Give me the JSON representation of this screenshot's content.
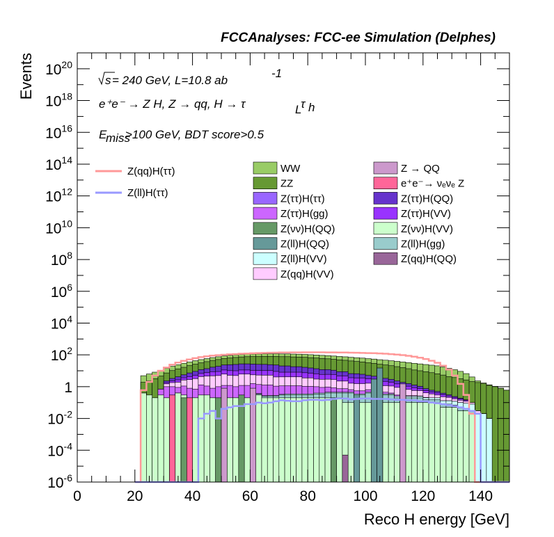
{
  "chart_data": {
    "type": "bar",
    "stacked": true,
    "log_y": true,
    "title": "FCCAnalyses: FCC-ee Simulation (Delphes)",
    "xlabel": "Reco H energy [GeV]",
    "ylabel": "Events",
    "xlim": [
      0,
      150
    ],
    "ylim": [
      1e-06,
      1e+21
    ],
    "x_ticks": [
      "0",
      "20",
      "40",
      "60",
      "80",
      "100",
      "120",
      "140"
    ],
    "y_ticks": [
      {
        "base": "10",
        "exp": "-6"
      },
      {
        "base": "10",
        "exp": "-4"
      },
      {
        "base": "10",
        "exp": "-2"
      },
      {
        "base": "1",
        "exp": ""
      },
      {
        "base": "10",
        "exp": "2"
      },
      {
        "base": "10",
        "exp": "4"
      },
      {
        "base": "10",
        "exp": "6"
      },
      {
        "base": "10",
        "exp": "8"
      },
      {
        "base": "10",
        "exp": "10"
      },
      {
        "base": "10",
        "exp": "12"
      },
      {
        "base": "10",
        "exp": "14"
      },
      {
        "base": "10",
        "exp": "16"
      },
      {
        "base": "10",
        "exp": "18"
      },
      {
        "base": "10",
        "exp": "20"
      }
    ],
    "annotations": {
      "sqrt_s": "s",
      "energy_lumi": " = 240 GeV, L=10.8 ab",
      "lumi_exp": "-1",
      "process": "e⁺e⁻ → Z H, Z → qq, H → τ",
      "process_sub1": "L",
      "process_tau2": "τ",
      "process_sub2": "h",
      "cut_E": "E",
      "cut_sub": "miss",
      "cut_rest": ">100 GeV, BDT score>0.5"
    },
    "legend_position": "top",
    "x_bin_centers": [
      21,
      23,
      25,
      27,
      29,
      31,
      33,
      35,
      37,
      39,
      41,
      43,
      45,
      47,
      49,
      51,
      53,
      55,
      57,
      59,
      61,
      63,
      65,
      67,
      69,
      71,
      73,
      75,
      77,
      79,
      81,
      83,
      85,
      87,
      89,
      91,
      93,
      95,
      97,
      99,
      101,
      103,
      105,
      107,
      109,
      111,
      113,
      115,
      117,
      119,
      121,
      123,
      125,
      127,
      129,
      131,
      133,
      135,
      137,
      139,
      141,
      143,
      145,
      147,
      149
    ],
    "series": [
      {
        "name": "Z(νν)H(VV)",
        "color": "#ccffcc",
        "values": [
          0,
          0.4,
          0.3,
          0.2,
          0.3,
          0.2,
          0.3,
          0.4,
          0.3,
          0.2,
          0.2,
          0.3,
          0.3,
          0.2,
          0.2,
          0.2,
          0.2,
          0.2,
          0.2,
          0.2,
          0.3,
          0.3,
          0.2,
          0.2,
          0.2,
          0.2,
          0.2,
          0.2,
          0.2,
          0.2,
          0.2,
          0.2,
          0.2,
          0.2,
          0.2,
          0.2,
          0.1,
          0.1,
          0.1,
          0.1,
          0.1,
          0.1,
          0.1,
          0.1,
          0.1,
          0.1,
          0.1,
          0.1,
          0.1,
          0.1,
          0.1,
          0.1,
          0.1,
          0.05,
          0.05,
          0.05,
          0.03,
          0.03,
          0.02,
          0,
          0,
          0,
          0,
          0,
          0
        ]
      },
      {
        "name": "Z(ll)H(gg)",
        "color": "#99cccc",
        "values": [
          0,
          0,
          0,
          0,
          0,
          0,
          0,
          0,
          0,
          0,
          0,
          0,
          0,
          0,
          0,
          0,
          0,
          0,
          0,
          0,
          0.05,
          0.05,
          0.05,
          0.05,
          0.05,
          0.1,
          0.1,
          0.1,
          0.1,
          0.1,
          0.1,
          0.15,
          0.15,
          0.2,
          0.2,
          0.2,
          0.3,
          0.3,
          0.2,
          0.2,
          0.3,
          0.3,
          0.3,
          0.2,
          0.2,
          0.1,
          0.1,
          0.1,
          0.1,
          0.1,
          0.05,
          0.05,
          0.05,
          0.03,
          0.03,
          0.02,
          0.02,
          0.01,
          0.01,
          0,
          0,
          0,
          0,
          0,
          0
        ]
      },
      {
        "name": "Z(ll)H(VV)",
        "color": "#ccffff",
        "values": [
          0,
          0,
          0,
          0,
          0,
          0,
          0,
          0,
          0,
          0,
          0,
          0,
          0,
          0,
          0,
          0,
          0,
          0,
          0,
          0,
          0.02,
          0.02,
          0.02,
          0.03,
          0.03,
          0.03,
          0.05,
          0.05,
          0.05,
          0.05,
          0.05,
          0.05,
          0.05,
          0.05,
          0.05,
          0.05,
          0.05,
          0.05,
          0.05,
          0.05,
          0.05,
          0.05,
          0.05,
          0.05,
          0.05,
          0.05,
          0.05,
          0.05,
          0.05,
          0.05,
          0.05,
          0.05,
          0.05,
          0.05,
          0.05,
          0.05,
          0.05,
          0.05,
          0.05,
          0.02,
          0.02,
          0.01,
          0,
          0,
          0
        ]
      },
      {
        "name": "Z(ττ)H(gg)",
        "color": "#cc66ff",
        "values": [
          0,
          0,
          0,
          0,
          0.4,
          0.8,
          0.7,
          0.5,
          0.8,
          0.6,
          0.5,
          1,
          0.8,
          0.6,
          0.8,
          1,
          1,
          0.8,
          1,
          1,
          1.2,
          1,
          1,
          1,
          0.8,
          0.8,
          0.8,
          0.8,
          0.8,
          0.7,
          0.7,
          0.6,
          0.5,
          0.5,
          0.4,
          0.3,
          0.3,
          0.2,
          0.2,
          0.2,
          0.2,
          0.1,
          0.1,
          0.1,
          0.05,
          0.05,
          0.03,
          0.02,
          0.02,
          0.01,
          0.01,
          0,
          0,
          0,
          0,
          0,
          0,
          0,
          0,
          0,
          0,
          0,
          0,
          0,
          0
        ]
      },
      {
        "name": "Z(qq)H(VV)",
        "color": "#ffccff",
        "values": [
          0,
          0,
          0,
          0,
          0,
          0.5,
          0.8,
          1,
          1.5,
          2,
          2.5,
          3,
          3.5,
          4,
          4,
          5,
          4,
          4,
          5,
          5,
          4,
          4,
          4,
          4,
          3,
          3,
          3,
          3,
          3,
          2.5,
          2.5,
          2,
          2,
          2,
          2,
          1.5,
          1.5,
          1,
          1,
          1,
          1,
          0.8,
          0.8,
          0.7,
          0.7,
          0.6,
          0.5,
          0.4,
          0.3,
          0.3,
          0.2,
          0.15,
          0.1,
          0.1,
          0.08,
          0.05,
          0.04,
          0.03,
          0.02,
          0.01,
          0,
          0,
          0,
          0,
          0
        ]
      },
      {
        "name": "Z(ττ)H(VV)",
        "color": "#9933ff",
        "values": [
          0,
          0,
          0,
          0,
          0,
          0.3,
          0.5,
          0.8,
          1,
          1.5,
          2,
          2.5,
          3,
          4,
          4,
          5,
          5,
          5,
          5,
          5,
          5,
          5,
          5,
          5,
          5,
          4,
          4,
          4,
          4,
          4,
          3.5,
          3.5,
          3,
          3,
          3,
          2.5,
          2.5,
          2,
          2,
          2,
          1.5,
          1.2,
          1,
          1,
          0.8,
          0.6,
          0.5,
          0.4,
          0.3,
          0.2,
          0.15,
          0.1,
          0.1,
          0.08,
          0.05,
          0.04,
          0.03,
          0.02,
          0,
          0,
          0,
          0,
          0,
          0,
          0
        ]
      },
      {
        "name": "Z(ττ)H(QQ)",
        "color": "#6633cc",
        "values": [
          0,
          0,
          0,
          0,
          0,
          0.5,
          1,
          1.5,
          2,
          3,
          4,
          5,
          6,
          8,
          10,
          12,
          14,
          15,
          16,
          16,
          16,
          15,
          15,
          14,
          14,
          12,
          12,
          10,
          10,
          9,
          8,
          7,
          6,
          6,
          5,
          4,
          4,
          3,
          3,
          2.5,
          2,
          2,
          1.5,
          1.2,
          1,
          0.8,
          0.6,
          0.5,
          0.4,
          0.3,
          0.2,
          0.15,
          0.1,
          0.08,
          0.05,
          0.03,
          0.02,
          0.01,
          0,
          0,
          0,
          0,
          0,
          0,
          0
        ]
      },
      {
        "name": "ZZ",
        "color": "#669933",
        "values": [
          0,
          1.5,
          2,
          3,
          4,
          5,
          7,
          9,
          11,
          14,
          17,
          20,
          24,
          28,
          32,
          36,
          40,
          44,
          47,
          50,
          52,
          54,
          55,
          56,
          57,
          57,
          57,
          56,
          55,
          54,
          52,
          50,
          48,
          45,
          42,
          40,
          37,
          35,
          32,
          30,
          27,
          25,
          22,
          20,
          18,
          16,
          14,
          12,
          10,
          9,
          8,
          7,
          6,
          5,
          4,
          3.5,
          3,
          2.5,
          2,
          1.8,
          1.5,
          1.2,
          1,
          0.8,
          0.6
        ]
      },
      {
        "name": "WW",
        "color": "#99cc66",
        "values": [
          0,
          3,
          4,
          5,
          6,
          7,
          9,
          11,
          13,
          15,
          17,
          19,
          21,
          23,
          25,
          27,
          29,
          31,
          32,
          33,
          34,
          35,
          36,
          37,
          38,
          38,
          38,
          38,
          37,
          37,
          36,
          35,
          34,
          33,
          32,
          31,
          30,
          29,
          28,
          27,
          26,
          25,
          24,
          23,
          22,
          21,
          20,
          19,
          18,
          17,
          16,
          15,
          14,
          12,
          10,
          8,
          6,
          4,
          2,
          0.5,
          0.2,
          0.1,
          0.05,
          0,
          0
        ]
      }
    ],
    "lines": [
      {
        "name": "Z(qq)H(ττ)",
        "color": "#ff9999",
        "values": [
          0,
          0.6,
          2,
          5,
          10,
          16,
          24,
          33,
          42,
          52,
          62,
          72,
          81,
          89,
          96,
          102,
          108,
          113,
          118,
          122,
          126,
          130,
          133,
          136,
          138,
          140,
          142,
          143,
          144,
          145,
          145,
          145,
          145,
          144,
          143,
          142,
          140,
          138,
          136,
          133,
          130,
          127,
          123,
          118,
          112,
          105,
          97,
          88,
          78,
          67,
          55,
          43,
          32,
          21,
          12,
          5,
          1.5,
          0.3,
          0.02,
          0,
          0,
          0,
          0,
          0,
          0
        ]
      },
      {
        "name": "Z(ll)H(ττ)",
        "color": "#9999ff",
        "values": [
          0,
          0,
          0,
          0,
          0,
          0,
          0,
          0,
          0,
          0,
          0,
          0.01,
          0.02,
          0.03,
          0.01,
          0.04,
          0.05,
          0.06,
          0.06,
          0.08,
          0.08,
          0.1,
          0.09,
          0.1,
          0.12,
          0.14,
          0.13,
          0.12,
          0.12,
          0.14,
          0.15,
          0.15,
          0.14,
          0.15,
          0.17,
          0.18,
          0.18,
          0.16,
          0.17,
          0.18,
          0.18,
          0.17,
          0.17,
          0.17,
          0.16,
          0.15,
          0.15,
          0.14,
          0.14,
          0.12,
          0.12,
          0.1,
          0.09,
          0.08,
          0.07,
          0.06,
          0.05,
          0.04,
          0.03,
          0.02,
          0,
          0,
          0,
          0,
          0
        ]
      }
    ],
    "single_bins": [
      {
        "name": "Z(νν)H(QQ)",
        "color": "#669966",
        "bins": [
          {
            "x": 37,
            "value": 0.2
          },
          {
            "x": 49,
            "value": 0.2
          },
          {
            "x": 57,
            "value": 0.3
          },
          {
            "x": 89,
            "value": 0.2
          },
          {
            "x": 105,
            "value": 0.3
          }
        ]
      },
      {
        "name": "Z(ll)H(QQ)",
        "color": "#669999",
        "bins": [
          {
            "x": 97,
            "value": 0.3
          },
          {
            "x": 103,
            "value": 3
          },
          {
            "x": 105,
            "value": 15
          }
        ]
      },
      {
        "name": "Z → QQ",
        "color": "#cc99cc",
        "bins": [
          {
            "x": 51,
            "value": 0.8
          },
          {
            "x": 61,
            "value": 0.8
          },
          {
            "x": 113,
            "value": 1.5
          }
        ]
      },
      {
        "name": "e⁺e⁻→ νₑνₑ Z",
        "color": "#ff6699",
        "bins": [
          {
            "x": 33,
            "value": 0.3
          },
          {
            "x": 39,
            "value": 0.2
          }
        ]
      },
      {
        "name": "Z(qq)H(QQ)",
        "color": "#996699",
        "bins": [
          {
            "x": 93,
            "value": 5e-05
          }
        ]
      }
    ]
  },
  "legend": {
    "lines": [
      {
        "label": "Z(qq)H(ττ)",
        "color": "#ff9999"
      },
      {
        "label": "Z(ll)H(ττ)",
        "color": "#9999ff"
      }
    ],
    "col1": [
      {
        "label": "WW",
        "color": "#99cc66"
      },
      {
        "label": "ZZ",
        "color": "#669933"
      },
      {
        "label": "Z(ττ)H(ττ)",
        "color": "#9966ff"
      },
      {
        "label": "Z(ττ)H(gg)",
        "color": "#cc66ff"
      },
      {
        "label": "Z(νν)H(QQ)",
        "color": "#669966"
      },
      {
        "label": "Z(ll)H(QQ)",
        "color": "#669999"
      },
      {
        "label": "Z(ll)H(VV)",
        "color": "#ccffff"
      },
      {
        "label": "Z(qq)H(VV)",
        "color": "#ffccff"
      }
    ],
    "col2": [
      {
        "label": "Z → QQ",
        "color": "#cc99cc"
      },
      {
        "label": "e⁺e⁻→ νₑνₑ Z",
        "color": "#ff6699"
      },
      {
        "label": "Z(ττ)H(QQ)",
        "color": "#6633cc"
      },
      {
        "label": "Z(ττ)H(VV)",
        "color": "#9933ff"
      },
      {
        "label": "Z(νν)H(VV)",
        "color": "#ccffcc"
      },
      {
        "label": "Z(ll)H(gg)",
        "color": "#99cccc"
      },
      {
        "label": "Z(qq)H(QQ)",
        "color": "#996699"
      }
    ]
  }
}
